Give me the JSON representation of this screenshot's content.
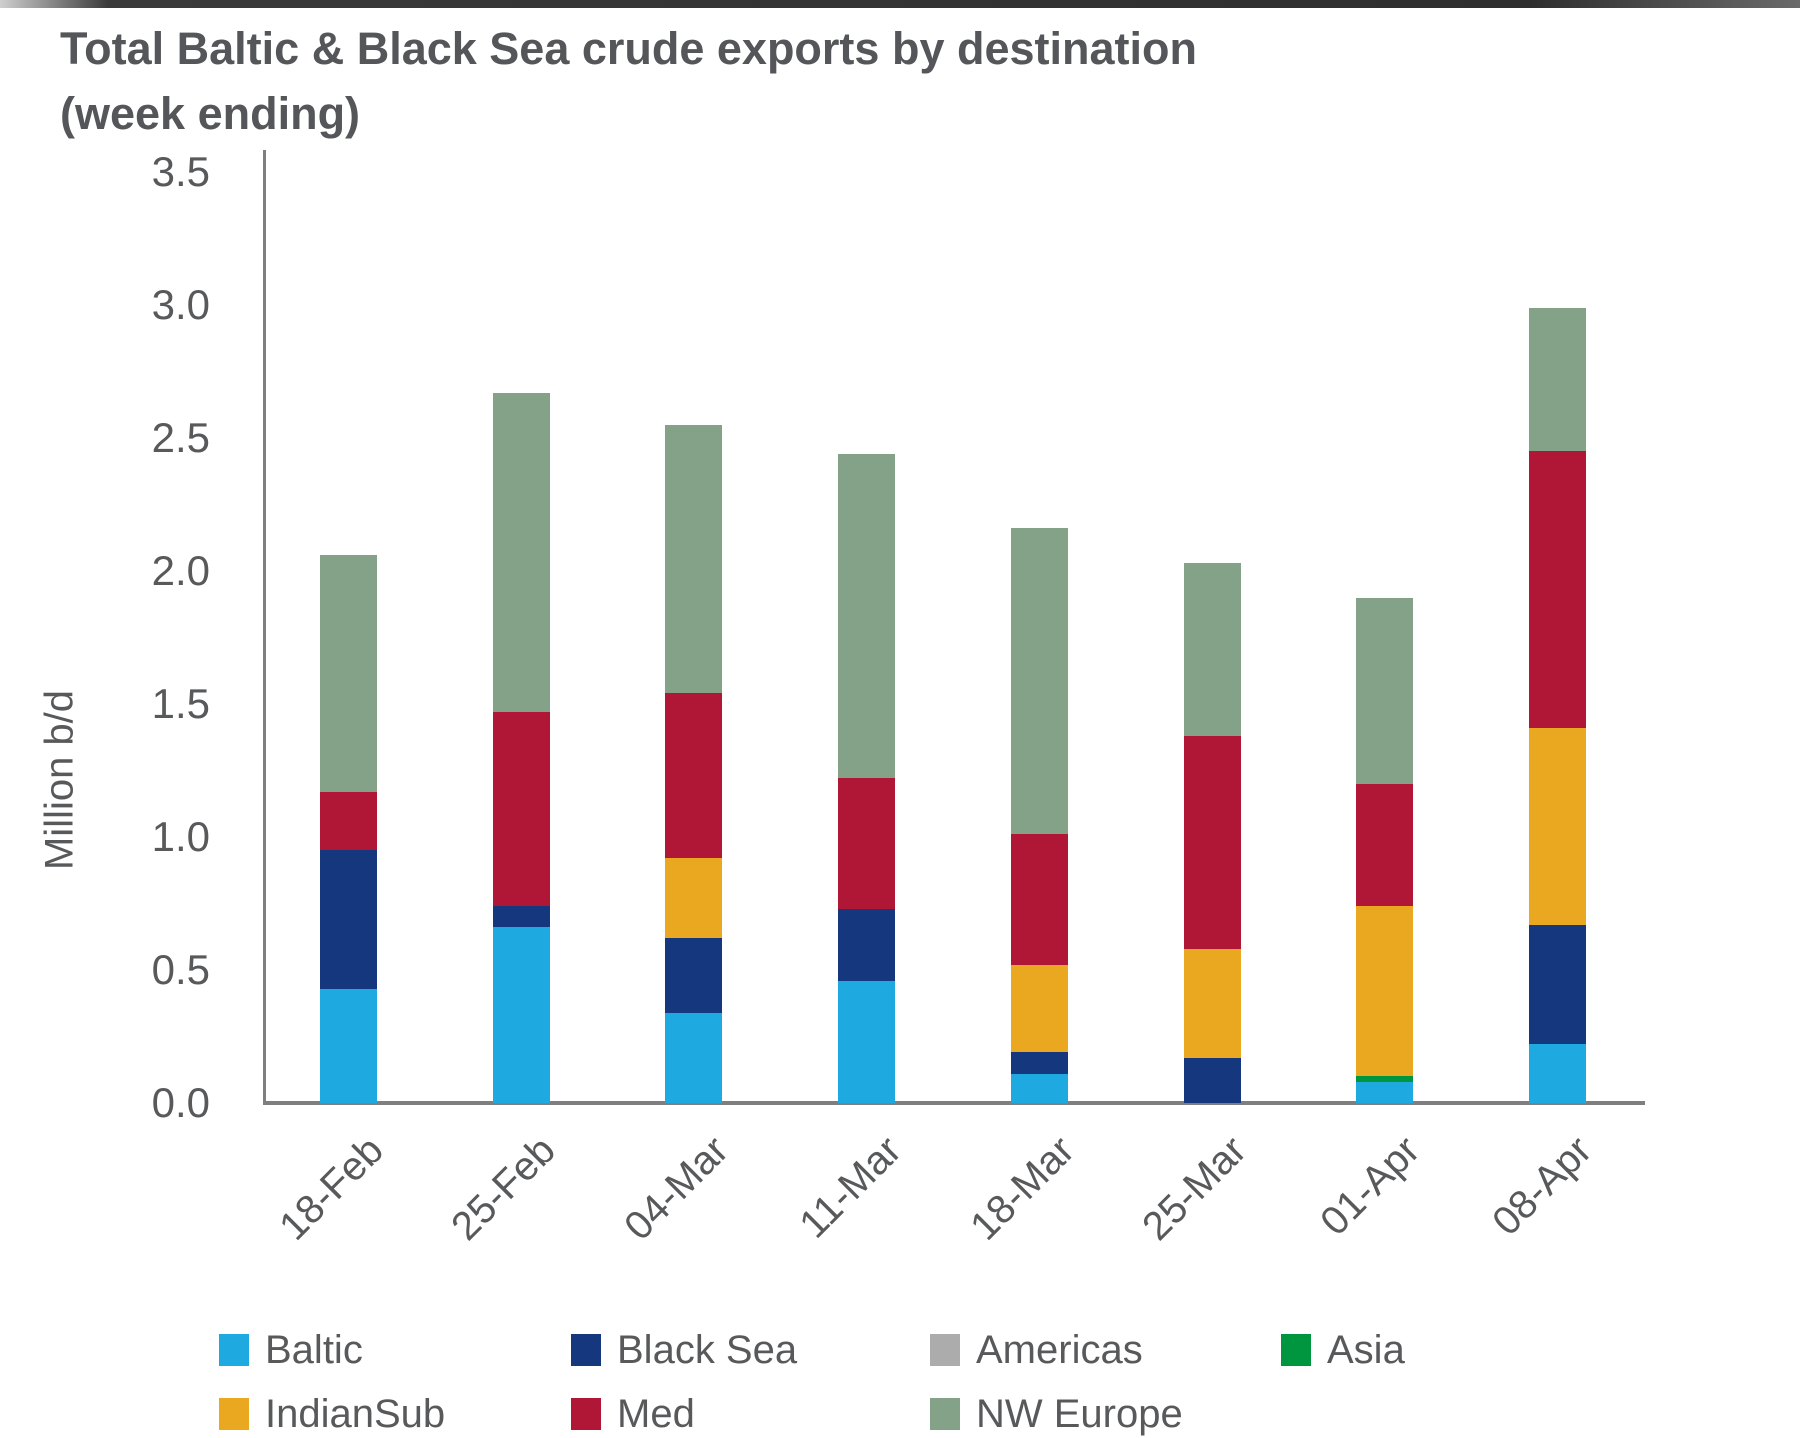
{
  "title": {
    "line1": "Total Baltic & Black Sea crude exports by destination",
    "line2": "(week ending)"
  },
  "y_axis": {
    "label": "Million b/d",
    "tick_values": [
      0.0,
      0.5,
      1.0,
      1.5,
      2.0,
      2.5,
      3.0,
      3.5
    ],
    "tick_labels": [
      "0.0",
      "0.5",
      "1.0",
      "1.5",
      "2.0",
      "2.5",
      "3.0",
      "3.5"
    ]
  },
  "chart_data": {
    "type": "bar",
    "stacked": true,
    "title": "Total Baltic & Black Sea crude exports by destination (week ending)",
    "xlabel": "",
    "ylabel": "Million b/d",
    "ylim": [
      0,
      3.5
    ],
    "grid": false,
    "legend_position": "bottom",
    "categories": [
      "18-Feb",
      "25-Feb",
      "04-Mar",
      "11-Mar",
      "18-Mar",
      "25-Mar",
      "01-Apr",
      "08-Apr"
    ],
    "series": [
      {
        "name": "Baltic",
        "color": "#1EA9E1",
        "values": [
          0.43,
          0.66,
          0.34,
          0.46,
          0.11,
          0.0,
          0.08,
          0.22
        ]
      },
      {
        "name": "Black Sea",
        "color": "#14377E",
        "values": [
          0.52,
          0.08,
          0.28,
          0.27,
          0.08,
          0.17,
          0.0,
          0.45
        ]
      },
      {
        "name": "Americas",
        "color": "#ACACAC",
        "values": [
          0.0,
          0.0,
          0.0,
          0.0,
          0.0,
          0.0,
          0.0,
          0.0
        ]
      },
      {
        "name": "Asia",
        "color": "#00953F",
        "values": [
          0.0,
          0.0,
          0.0,
          0.0,
          0.0,
          0.0,
          0.02,
          0.0
        ]
      },
      {
        "name": "IndianSub",
        "color": "#E9A820",
        "values": [
          0.0,
          0.0,
          0.3,
          0.0,
          0.33,
          0.41,
          0.64,
          0.74
        ]
      },
      {
        "name": "Med",
        "color": "#B01736",
        "values": [
          0.22,
          0.73,
          0.62,
          0.49,
          0.49,
          0.8,
          0.46,
          1.04
        ]
      },
      {
        "name": "NW Europe",
        "color": "#84A287",
        "values": [
          0.89,
          1.2,
          1.01,
          1.22,
          1.15,
          0.65,
          0.7,
          0.54
        ]
      }
    ],
    "totals": [
      2.06,
      2.67,
      2.55,
      2.44,
      2.16,
      2.03,
      1.9,
      2.99
    ]
  },
  "colors": {
    "text": "#58595B",
    "axis": "#7F7F7F",
    "background": "#FFFFFF"
  }
}
